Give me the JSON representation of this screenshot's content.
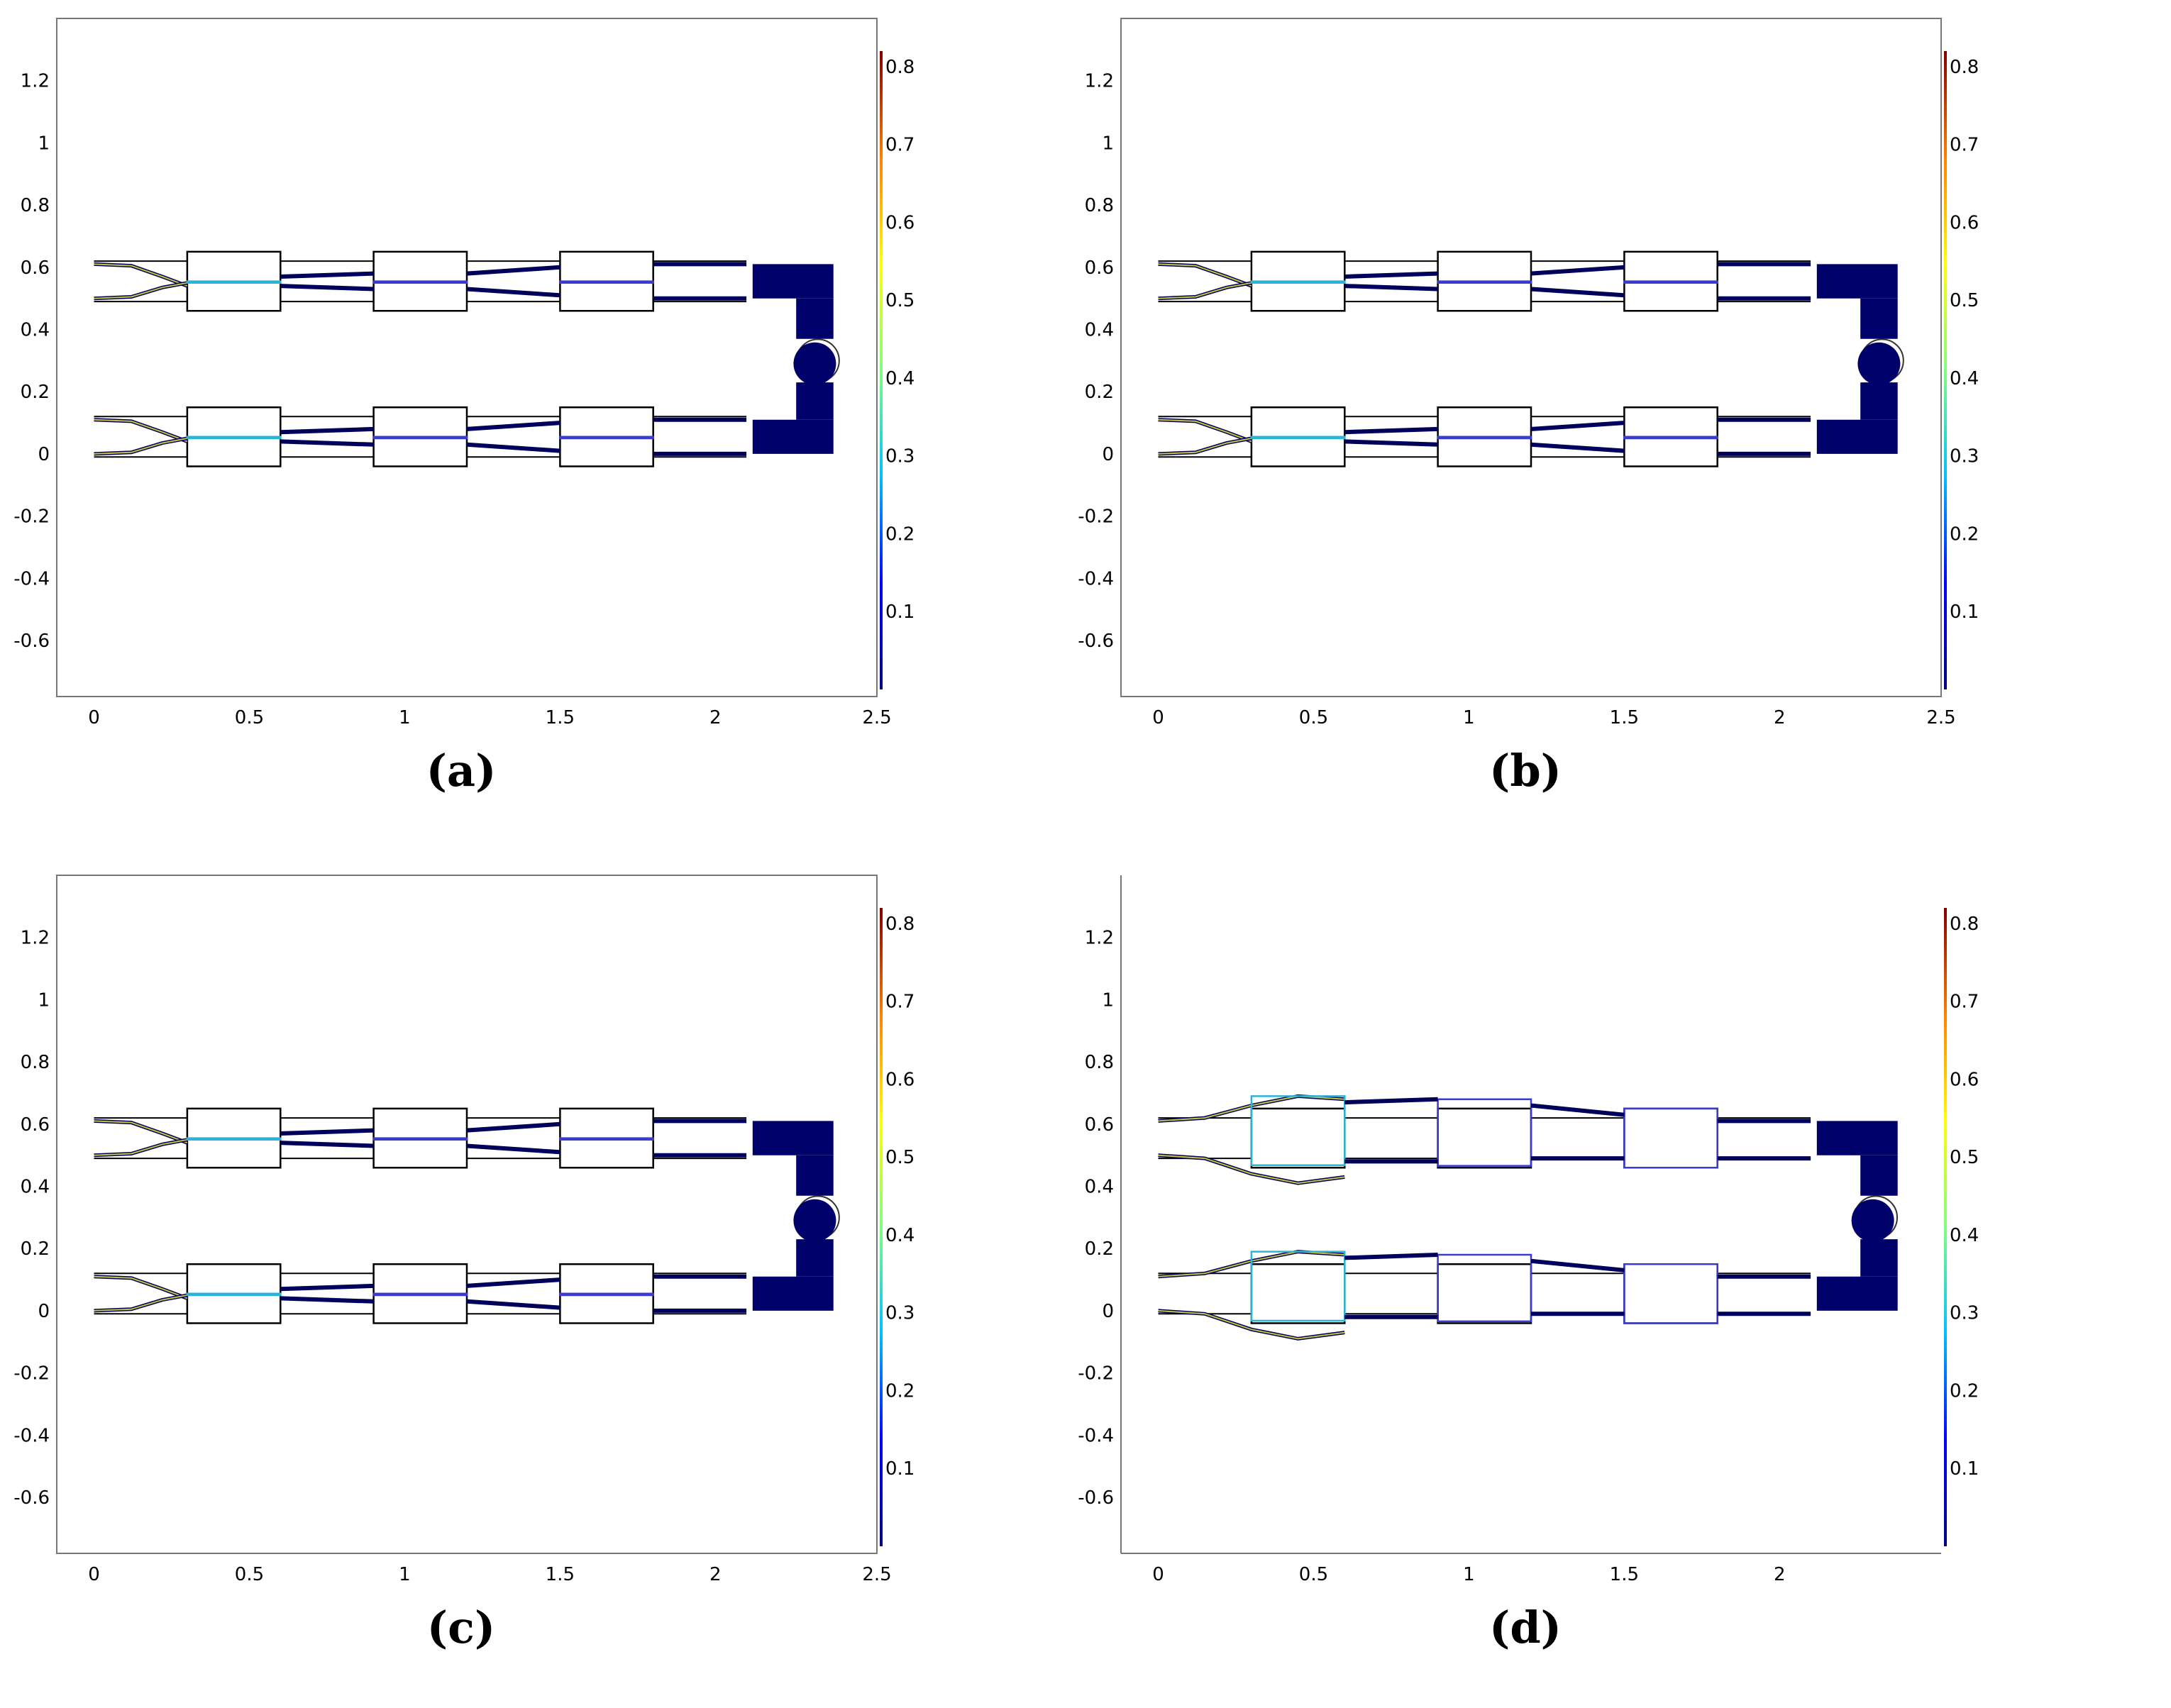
{
  "figure": {
    "panels": [
      {
        "id": "a",
        "caption": "(a)",
        "right_edge_label": "2.5",
        "variant": "initial"
      },
      {
        "id": "b",
        "caption": "(b)",
        "right_edge_label": "2.5",
        "variant": "initial"
      },
      {
        "id": "c",
        "caption": "(c)",
        "right_edge_label": "2.5",
        "variant": "initial"
      },
      {
        "id": "d",
        "caption": "(d)",
        "right_edge_label": "",
        "variant": "deformed"
      }
    ],
    "x_ticks": [
      "0",
      "0.5",
      "1",
      "1.5",
      "2"
    ],
    "x_tick_values": [
      0,
      0.5,
      1,
      1.5,
      2
    ],
    "y_ticks": [
      "1.2",
      "1",
      "0.8",
      "0.6",
      "0.4",
      "0.2",
      "0",
      "-0.2",
      "-0.4",
      "-0.6"
    ],
    "y_tick_values": [
      1.2,
      1.0,
      0.8,
      0.6,
      0.4,
      0.2,
      0,
      -0.2,
      -0.4,
      -0.6
    ],
    "x_range": [
      -0.12,
      2.52
    ],
    "y_range": [
      -0.78,
      1.4
    ],
    "colorbar_ticks": [
      "0.8",
      "0.7",
      "0.6",
      "0.5",
      "0.4",
      "0.3",
      "0.2",
      "0.1"
    ],
    "colorbar_range": [
      0,
      0.82
    ],
    "colorbar_colors": [
      "#00007f",
      "#0000ff",
      "#00bfff",
      "#7fff7f",
      "#ffff00",
      "#ff7f00",
      "#7f0000"
    ],
    "colors": {
      "solid_fill": "#00006b",
      "outline": "#000000",
      "cyan": "#2bb3d8",
      "blue": "#3b3bd0",
      "navy": "#00005a",
      "yellow": "#c8c040"
    }
  }
}
